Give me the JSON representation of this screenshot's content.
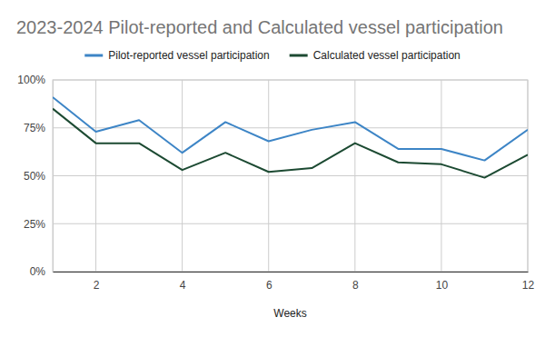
{
  "chart_data": {
    "type": "line",
    "title": "2023-2024 Pilot-reported and Calculated vessel participation",
    "x_label": "Weeks",
    "x": [
      1,
      2,
      3,
      4,
      5,
      6,
      7,
      8,
      9,
      10,
      11,
      12
    ],
    "series": [
      {
        "name": "Pilot-reported vessel participation",
        "color": "#3d85c6",
        "values": [
          91,
          73,
          79,
          62,
          78,
          68,
          74,
          78,
          64,
          64,
          58,
          74
        ]
      },
      {
        "name": "Calculated vessel participation",
        "color": "#1c4a32",
        "values": [
          85,
          67,
          67,
          53,
          62,
          52,
          54,
          67,
          57,
          56,
          49,
          61
        ]
      }
    ],
    "xlim": [
      1,
      12
    ],
    "xticks": [
      2,
      4,
      6,
      8,
      10,
      12
    ],
    "ylim": [
      0,
      100
    ],
    "yticks": [
      {
        "value": 0,
        "label": "0%"
      },
      {
        "value": 25,
        "label": "25%"
      },
      {
        "value": 50,
        "label": "50%"
      },
      {
        "value": 75,
        "label": "75%"
      },
      {
        "value": 100,
        "label": "100%"
      }
    ],
    "grid": true,
    "legend": "top"
  }
}
